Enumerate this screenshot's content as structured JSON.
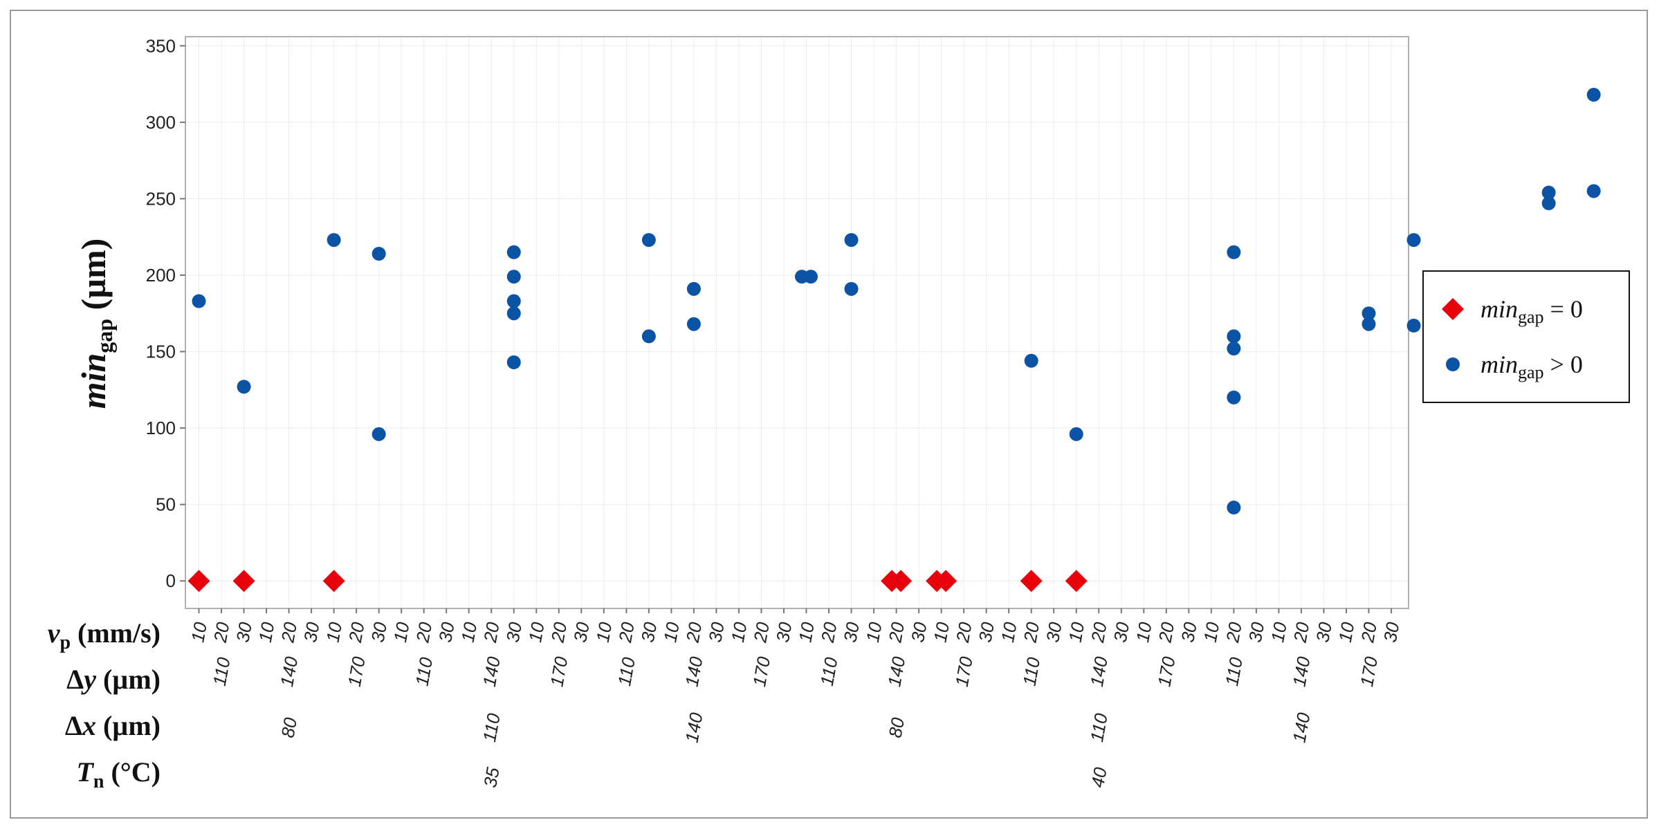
{
  "chart_data": {
    "type": "scatter",
    "ylabel": {
      "main": "min",
      "sub": "gap",
      "unit": " (µm)"
    },
    "ylim": [
      -18,
      356
    ],
    "yticks": [
      0,
      50,
      100,
      150,
      200,
      250,
      300,
      350
    ],
    "grid": true,
    "legend_position": "right",
    "factor_rows": [
      {
        "name": "v",
        "sub": "p",
        "unit": " (mm/s)",
        "italic": true
      },
      {
        "name": "Δ",
        "var": "y",
        "unit": " (µm)"
      },
      {
        "name": "Δ",
        "var": "x",
        "unit": " (µm)"
      },
      {
        "name": "T",
        "sub": "n",
        "unit": " (°C)",
        "italic": true
      }
    ],
    "levels": {
      "Tn": [
        "35",
        "40"
      ],
      "dx": [
        "80",
        "110",
        "140"
      ],
      "dy": [
        "110",
        "140",
        "170"
      ],
      "vp": [
        "10",
        "20",
        "30"
      ]
    },
    "series": [
      {
        "name": "min",
        "name_sub": "gap",
        "name_rel": " = 0",
        "marker": "diamond",
        "color": "#e8000b",
        "points": [
          {
            "x": 1,
            "y": 0
          },
          {
            "x": 3,
            "y": 0
          },
          {
            "x": 7,
            "y": 0
          },
          {
            "x": 31.8,
            "y": 0
          },
          {
            "x": 32.2,
            "y": 0
          },
          {
            "x": 33.8,
            "y": 0
          },
          {
            "x": 34.2,
            "y": 0
          },
          {
            "x": 38,
            "y": 0
          },
          {
            "x": 40,
            "y": 0
          }
        ]
      },
      {
        "name": "min",
        "name_sub": "gap",
        "name_rel": " > 0",
        "marker": "circle",
        "color": "#0b53a5",
        "points": [
          {
            "x": 1,
            "y": 183
          },
          {
            "x": 3,
            "y": 127
          },
          {
            "x": 7,
            "y": 223
          },
          {
            "x": 9,
            "y": 214
          },
          {
            "x": 9,
            "y": 96
          },
          {
            "x": 15,
            "y": 215
          },
          {
            "x": 15,
            "y": 199
          },
          {
            "x": 15,
            "y": 183
          },
          {
            "x": 15,
            "y": 175
          },
          {
            "x": 15,
            "y": 143
          },
          {
            "x": 21,
            "y": 223
          },
          {
            "x": 21,
            "y": 160
          },
          {
            "x": 23,
            "y": 191
          },
          {
            "x": 23,
            "y": 168
          },
          {
            "x": 27.8,
            "y": 199
          },
          {
            "x": 28.2,
            "y": 199
          },
          {
            "x": 30,
            "y": 223
          },
          {
            "x": 30,
            "y": 191
          },
          {
            "x": 38,
            "y": 144
          },
          {
            "x": 40,
            "y": 96
          },
          {
            "x": 47,
            "y": 215
          },
          {
            "x": 47,
            "y": 160
          },
          {
            "x": 47,
            "y": 152
          },
          {
            "x": 47,
            "y": 120
          },
          {
            "x": 47,
            "y": 48
          },
          {
            "x": 53,
            "y": 175
          },
          {
            "x": 53,
            "y": 168
          },
          {
            "x": 55,
            "y": 223
          },
          {
            "x": 55,
            "y": 167
          },
          {
            "x": 61,
            "y": 254
          },
          {
            "x": 61,
            "y": 247
          },
          {
            "x": 63,
            "y": 318
          },
          {
            "x": 63,
            "y": 255
          }
        ]
      }
    ]
  }
}
